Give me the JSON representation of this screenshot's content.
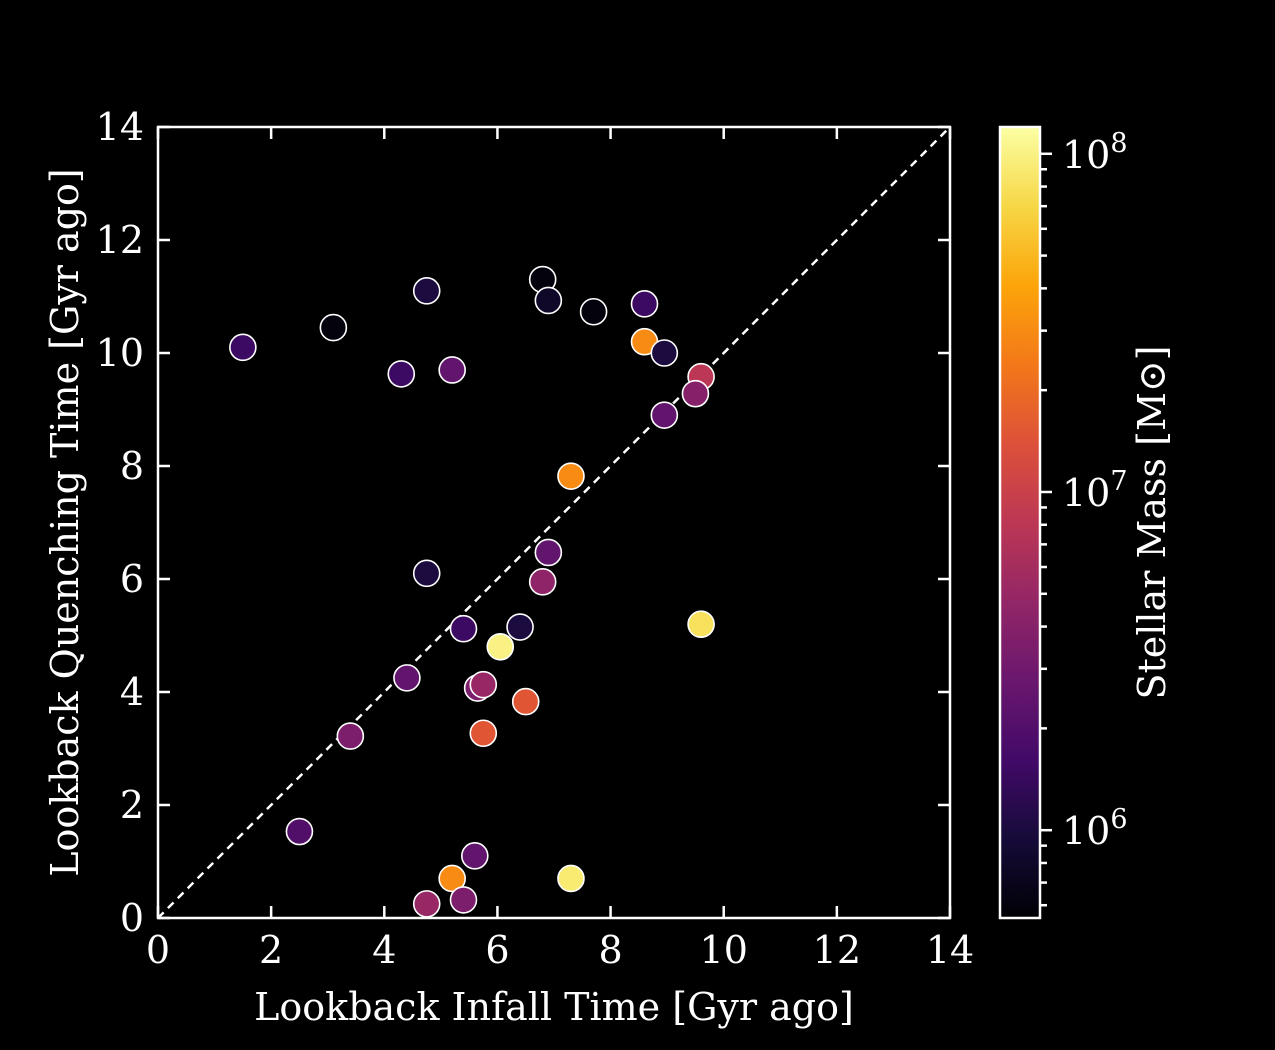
{
  "chart_data": {
    "type": "scatter",
    "xlabel": "Lookback Infall Time [Gyr ago]",
    "ylabel": "Lookback Quenching Time [Gyr ago]",
    "xlim": [
      0,
      14
    ],
    "ylim": [
      0,
      14
    ],
    "xticks": [
      "0",
      "2",
      "4",
      "6",
      "8",
      "10",
      "12",
      "14"
    ],
    "yticks": [
      "0",
      "2",
      "4",
      "6",
      "8",
      "10",
      "12",
      "14"
    ],
    "one_to_one_line": true,
    "colorbar": {
      "label": "Stellar Mass [M⊙]",
      "scale": "log",
      "range": [
        550000,
        120000000
      ],
      "ticks": [
        {
          "value": 1000000,
          "base": "10",
          "exp": "6"
        },
        {
          "value": 10000000,
          "base": "10",
          "exp": "7"
        },
        {
          "value": 100000000,
          "base": "10",
          "exp": "8"
        }
      ],
      "colormap": "inferno"
    },
    "points": [
      {
        "x": 1.5,
        "y": 10.1,
        "mass": 1500000
      },
      {
        "x": 3.1,
        "y": 10.45,
        "mass": 600000
      },
      {
        "x": 4.75,
        "y": 11.1,
        "mass": 1000000
      },
      {
        "x": 4.3,
        "y": 9.63,
        "mass": 1500000
      },
      {
        "x": 5.2,
        "y": 9.7,
        "mass": 2500000
      },
      {
        "x": 6.8,
        "y": 11.3,
        "mass": 600000
      },
      {
        "x": 6.9,
        "y": 10.93,
        "mass": 800000
      },
      {
        "x": 7.7,
        "y": 10.73,
        "mass": 600000
      },
      {
        "x": 8.6,
        "y": 10.87,
        "mass": 1500000
      },
      {
        "x": 8.6,
        "y": 10.2,
        "mass": 30000000
      },
      {
        "x": 8.95,
        "y": 10.0,
        "mass": 1000000
      },
      {
        "x": 9.6,
        "y": 9.58,
        "mass": 8000000
      },
      {
        "x": 9.5,
        "y": 9.28,
        "mass": 4000000
      },
      {
        "x": 8.95,
        "y": 8.9,
        "mass": 2500000
      },
      {
        "x": 7.3,
        "y": 7.82,
        "mass": 30000000
      },
      {
        "x": 6.9,
        "y": 6.47,
        "mass": 2500000
      },
      {
        "x": 6.8,
        "y": 5.95,
        "mass": 4500000
      },
      {
        "x": 4.75,
        "y": 6.1,
        "mass": 1000000
      },
      {
        "x": 5.4,
        "y": 5.12,
        "mass": 1500000
      },
      {
        "x": 6.4,
        "y": 5.15,
        "mass": 1000000
      },
      {
        "x": 6.05,
        "y": 4.8,
        "mass": 100000000
      },
      {
        "x": 9.6,
        "y": 5.2,
        "mass": 80000000
      },
      {
        "x": 4.4,
        "y": 4.25,
        "mass": 2500000
      },
      {
        "x": 5.65,
        "y": 4.07,
        "mass": 3500000
      },
      {
        "x": 5.75,
        "y": 4.13,
        "mass": 5000000
      },
      {
        "x": 6.5,
        "y": 3.83,
        "mass": 15000000
      },
      {
        "x": 3.4,
        "y": 3.22,
        "mass": 3500000
      },
      {
        "x": 5.75,
        "y": 3.27,
        "mass": 15000000
      },
      {
        "x": 2.5,
        "y": 1.53,
        "mass": 2000000
      },
      {
        "x": 5.6,
        "y": 1.1,
        "mass": 2500000
      },
      {
        "x": 5.2,
        "y": 0.7,
        "mass": 30000000
      },
      {
        "x": 7.3,
        "y": 0.7,
        "mass": 90000000
      },
      {
        "x": 4.75,
        "y": 0.25,
        "mass": 5000000
      },
      {
        "x": 5.4,
        "y": 0.32,
        "mass": 3500000
      }
    ]
  }
}
